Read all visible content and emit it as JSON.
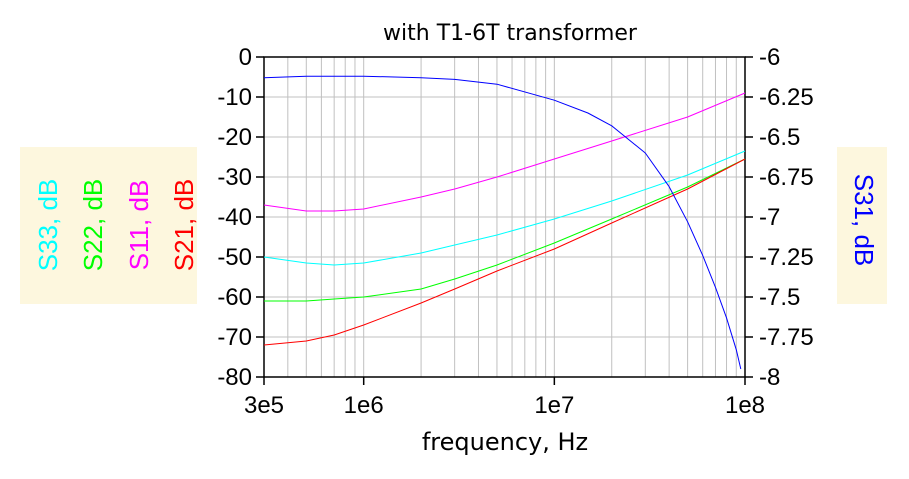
{
  "chart_data": {
    "type": "line",
    "title": "with T1-6T transformer",
    "xlabel": "frequency, Hz",
    "x_scale": "log",
    "xlim": [
      300000,
      100000000
    ],
    "x_ticks": [
      {
        "value": 300000,
        "label": "3e5"
      },
      {
        "value": 1000000,
        "label": "1e6"
      },
      {
        "value": 10000000,
        "label": "1e7"
      },
      {
        "value": 100000000,
        "label": "1e8"
      }
    ],
    "ylim_left": [
      -80,
      0
    ],
    "y_ticks_left": [
      "0",
      "-10",
      "-20",
      "-30",
      "-40",
      "-50",
      "-60",
      "-70",
      "-80"
    ],
    "ylim_right": [
      -8,
      -6
    ],
    "y_ticks_right": [
      "-6",
      "-6.25",
      "-6.5",
      "-6.75",
      "-7",
      "-7.25",
      "-7.5",
      "-7.75",
      "-8"
    ],
    "left_axis_labels": [
      {
        "text": "S33, dB",
        "color": "#00ffff"
      },
      {
        "text": "S22, dB",
        "color": "#00ff00"
      },
      {
        "text": "S11, dB",
        "color": "#ff00ff"
      },
      {
        "text": "S21, dB",
        "color": "#ff0000"
      }
    ],
    "right_axis_label": {
      "text": "S31, dB",
      "color": "#0000ff"
    },
    "grid": true,
    "series": [
      {
        "name": "S33, dB",
        "axis": "left",
        "color": "#00ffff",
        "x": [
          300000,
          500000,
          700000,
          1000000,
          2000000,
          3000000,
          5000000,
          10000000,
          20000000,
          50000000,
          100000000
        ],
        "y": [
          -50,
          -51.5,
          -52,
          -51.5,
          -49,
          -47,
          -44.5,
          -40.5,
          -36,
          -29.5,
          -23.5
        ]
      },
      {
        "name": "S22, dB",
        "axis": "left",
        "color": "#00ff00",
        "x": [
          300000,
          500000,
          700000,
          1000000,
          2000000,
          3000000,
          5000000,
          10000000,
          20000000,
          50000000,
          100000000
        ],
        "y": [
          -61,
          -61,
          -60.5,
          -60,
          -58,
          -55.5,
          -52,
          -46.5,
          -40.5,
          -32.5,
          -25.5
        ]
      },
      {
        "name": "S11, dB",
        "axis": "left",
        "color": "#ff00ff",
        "x": [
          300000,
          500000,
          700000,
          1000000,
          2000000,
          3000000,
          5000000,
          10000000,
          20000000,
          50000000,
          100000000
        ],
        "y": [
          -37,
          -38.5,
          -38.5,
          -38,
          -35,
          -33,
          -30,
          -25.5,
          -21,
          -15,
          -9
        ]
      },
      {
        "name": "S21, dB",
        "axis": "left",
        "color": "#ff0000",
        "x": [
          300000,
          500000,
          700000,
          1000000,
          2000000,
          3000000,
          5000000,
          10000000,
          20000000,
          50000000,
          100000000
        ],
        "y": [
          -72,
          -71,
          -69.5,
          -67,
          -61.5,
          -58,
          -53.5,
          -48,
          -41.5,
          -33,
          -25.5
        ]
      },
      {
        "name": "S31, dB",
        "axis": "right",
        "color": "#0000ff",
        "x": [
          300000,
          500000,
          700000,
          1000000,
          2000000,
          3000000,
          5000000,
          10000000,
          15000000,
          20000000,
          30000000,
          40000000,
          50000000,
          60000000,
          70000000,
          80000000,
          90000000,
          95000000
        ],
        "y": [
          -6.13,
          -6.12,
          -6.12,
          -6.12,
          -6.13,
          -6.14,
          -6.17,
          -6.27,
          -6.35,
          -6.43,
          -6.6,
          -6.81,
          -7.03,
          -7.24,
          -7.44,
          -7.63,
          -7.83,
          -7.95
        ]
      }
    ]
  }
}
